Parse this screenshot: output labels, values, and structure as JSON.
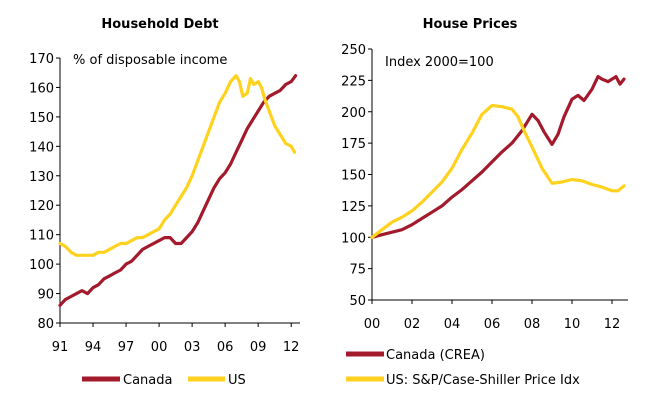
{
  "colors": {
    "canada": "#a31a2c",
    "us": "#ffd21f",
    "axis": "#000000"
  },
  "chart_data": [
    {
      "type": "line",
      "title": "Household Debt",
      "annotation": "% of disposable income",
      "xlabel": "",
      "ylabel": "",
      "xlim": [
        1991,
        2012.8
      ],
      "ylim": [
        80,
        170
      ],
      "yticks": [
        80,
        90,
        100,
        110,
        120,
        130,
        140,
        150,
        160,
        170
      ],
      "xticks": [
        {
          "x": 1991,
          "label": "91"
        },
        {
          "x": 1994,
          "label": "94"
        },
        {
          "x": 1997,
          "label": "97"
        },
        {
          "x": 2000,
          "label": "00"
        },
        {
          "x": 2003,
          "label": "03"
        },
        {
          "x": 2006,
          "label": "06"
        },
        {
          "x": 2009,
          "label": "09"
        },
        {
          "x": 2012,
          "label": "12"
        }
      ],
      "legend": [
        "Canada",
        "US"
      ],
      "series": [
        {
          "name": "Canada",
          "color": "#a31a2c",
          "x": [
            1991,
            1991.5,
            1992,
            1992.5,
            1993,
            1993.5,
            1994,
            1994.5,
            1995,
            1995.5,
            1996,
            1996.5,
            1997,
            1997.5,
            1998,
            1998.5,
            1999,
            1999.5,
            2000,
            2000.5,
            2001,
            2001.5,
            2002,
            2002.5,
            2003,
            2003.5,
            2004,
            2004.5,
            2005,
            2005.5,
            2006,
            2006.5,
            2007,
            2007.5,
            2008,
            2008.5,
            2009,
            2009.5,
            2010,
            2010.5,
            2011,
            2011.5,
            2012,
            2012.4
          ],
          "values": [
            86,
            88,
            89,
            90,
            91,
            90,
            92,
            93,
            95,
            96,
            97,
            98,
            100,
            101,
            103,
            105,
            106,
            107,
            108,
            109,
            109,
            107,
            107,
            109,
            111,
            114,
            118,
            122,
            126,
            129,
            131,
            134,
            138,
            142,
            146,
            149,
            152,
            155,
            157,
            158,
            159,
            161,
            162,
            164
          ]
        },
        {
          "name": "US",
          "color": "#ffd21f",
          "x": [
            1991,
            1991.5,
            1992,
            1992.5,
            1993,
            1993.5,
            1994,
            1994.5,
            1995,
            1995.5,
            1996,
            1996.5,
            1997,
            1997.5,
            1998,
            1998.5,
            1999,
            1999.5,
            2000,
            2000.5,
            2001,
            2001.5,
            2002,
            2002.5,
            2003,
            2003.5,
            2004,
            2004.5,
            2005,
            2005.5,
            2006,
            2006.5,
            2007,
            2007.3,
            2007.6,
            2008,
            2008.3,
            2008.6,
            2009,
            2009.3,
            2009.6,
            2010,
            2010.5,
            2011,
            2011.5,
            2012,
            2012.3
          ],
          "values": [
            107,
            106,
            104,
            103,
            103,
            103,
            103,
            104,
            104,
            105,
            106,
            107,
            107,
            108,
            109,
            109,
            110,
            111,
            112,
            115,
            117,
            120,
            123,
            126,
            130,
            135,
            140,
            145,
            150,
            155,
            158,
            162,
            164,
            162,
            157,
            158,
            163,
            161,
            162,
            160,
            156,
            152,
            147,
            144,
            141,
            140,
            138
          ]
        }
      ]
    },
    {
      "type": "line",
      "title": "House Prices",
      "annotation": "Index 2000=100",
      "xlabel": "",
      "ylabel": "",
      "xlim": [
        2000,
        2012.8
      ],
      "ylim": [
        50,
        250
      ],
      "yticks": [
        50,
        75,
        100,
        125,
        150,
        175,
        200,
        225,
        250
      ],
      "xticks": [
        {
          "x": 2000,
          "label": "00"
        },
        {
          "x": 2002,
          "label": "02"
        },
        {
          "x": 2004,
          "label": "04"
        },
        {
          "x": 2006,
          "label": "06"
        },
        {
          "x": 2008,
          "label": "08"
        },
        {
          "x": 2010,
          "label": "10"
        },
        {
          "x": 2012,
          "label": "12"
        }
      ],
      "legend": [
        "Canada (CREA)",
        "US: S&P/Case-Shiller Price Idx"
      ],
      "series": [
        {
          "name": "Canada (CREA)",
          "color": "#a31a2c",
          "x": [
            2000,
            2000.5,
            2001,
            2001.5,
            2002,
            2002.5,
            2003,
            2003.5,
            2004,
            2004.5,
            2005,
            2005.5,
            2006,
            2006.5,
            2007,
            2007.5,
            2008,
            2008.3,
            2008.6,
            2009,
            2009.3,
            2009.6,
            2010,
            2010.3,
            2010.6,
            2011,
            2011.3,
            2011.5,
            2011.8,
            2012,
            2012.2,
            2012.4,
            2012.6
          ],
          "values": [
            100,
            102,
            104,
            106,
            110,
            115,
            120,
            125,
            132,
            138,
            145,
            152,
            160,
            168,
            175,
            185,
            198,
            193,
            184,
            174,
            182,
            196,
            210,
            213,
            209,
            218,
            228,
            226,
            224,
            226,
            228,
            222,
            226
          ]
        },
        {
          "name": "US: S&P/Case-Shiller Price Idx",
          "color": "#ffd21f",
          "x": [
            2000,
            2000.5,
            2001,
            2001.5,
            2002,
            2002.5,
            2003,
            2003.5,
            2004,
            2004.5,
            2005,
            2005.5,
            2006,
            2006.5,
            2007,
            2007.3,
            2007.6,
            2008,
            2008.5,
            2009,
            2009.5,
            2010,
            2010.5,
            2011,
            2011.5,
            2012,
            2012.3,
            2012.6
          ],
          "values": [
            100,
            106,
            112,
            116,
            121,
            128,
            136,
            144,
            155,
            170,
            183,
            198,
            205,
            204,
            202,
            196,
            185,
            172,
            155,
            143,
            144,
            146,
            145,
            142,
            140,
            137,
            137,
            141
          ]
        }
      ]
    }
  ]
}
